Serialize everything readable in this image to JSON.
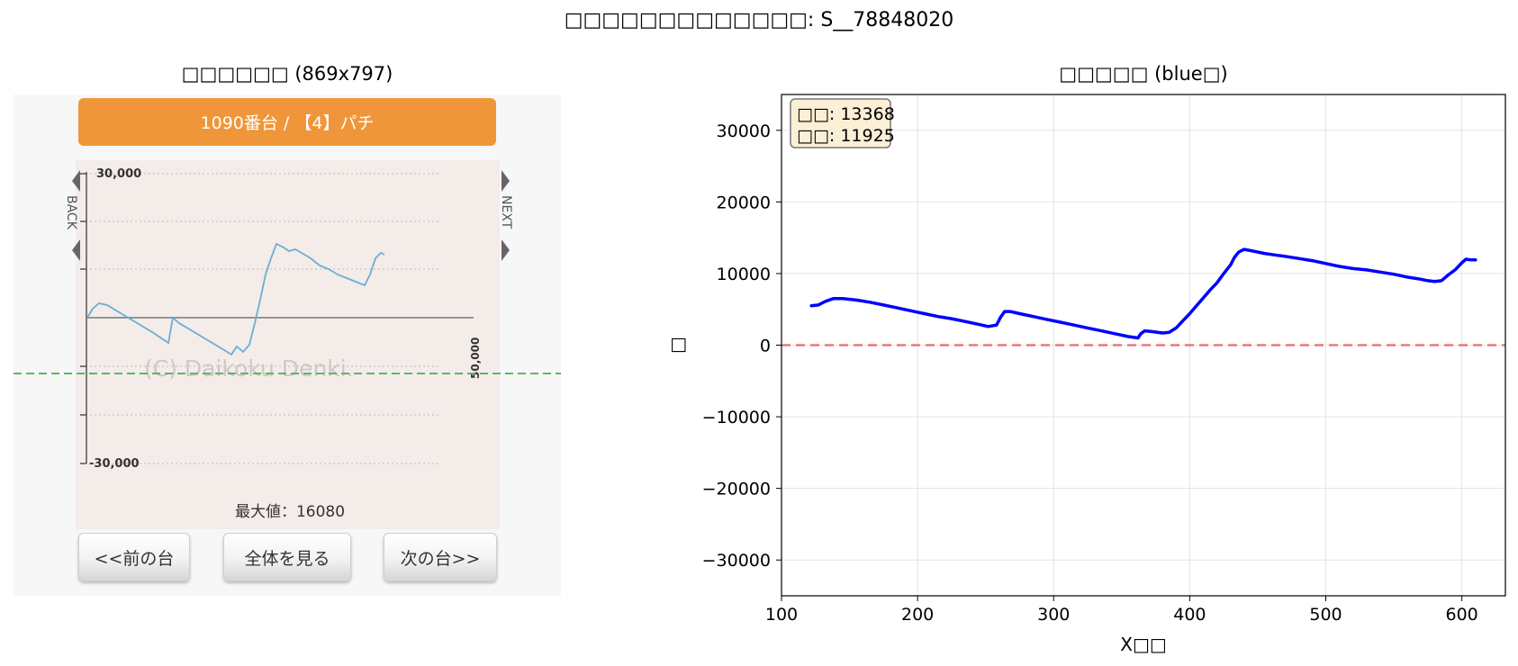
{
  "suptitle": "□□□□□□□□□□□□□: S__78848020",
  "left": {
    "title": "□□□□□□ (869x797)",
    "machine_label": "1090番台 / 【4】パチ",
    "back_label": "BACK",
    "next_side_label": "NEXT",
    "y_top_label": "30,000",
    "y_bottom_label": "-30,000",
    "y_right_label": "50,000",
    "watermark": "(C) Daikoku Denki.",
    "max_label": "最大値：16080",
    "buttons": {
      "prev": "<<前の台",
      "all": "全体を見る",
      "next": "次の台>>"
    },
    "colors": {
      "header": "#f0963a",
      "graph_bg": "#f3ece8",
      "line": "#6aaed6",
      "green_dashed": "#5cb85c"
    }
  },
  "right": {
    "title": "□□□□□ (blue□)",
    "info_lines": [
      "□□: 13368",
      "□□: 11925"
    ]
  },
  "chart_data": {
    "type": "line",
    "xlabel": "X□□",
    "ylabel": "□",
    "xlim": [
      100,
      632
    ],
    "ylim": [
      -35000,
      35000
    ],
    "xticks": [
      100,
      200,
      300,
      400,
      500,
      600
    ],
    "yticks": [
      -30000,
      -20000,
      -10000,
      0,
      10000,
      20000,
      30000
    ],
    "grid": true,
    "baseline": {
      "y": 0,
      "color": "#e87a7a",
      "style": "dashed"
    },
    "series": [
      {
        "color": "#0000ff",
        "x": [
          122,
          127,
          132,
          138,
          145,
          155,
          165,
          175,
          185,
          195,
          205,
          215,
          225,
          235,
          245,
          252,
          258,
          261,
          264,
          268,
          275,
          285,
          295,
          305,
          315,
          325,
          335,
          345,
          355,
          362,
          364,
          367,
          372,
          380,
          385,
          390,
          395,
          400,
          405,
          410,
          415,
          420,
          425,
          430,
          433,
          436,
          440,
          445,
          455,
          462,
          470,
          480,
          490,
          500,
          510,
          520,
          530,
          540,
          550,
          560,
          570,
          575,
          580,
          585,
          590,
          595,
          600,
          603,
          606,
          610
        ],
        "y": [
          5500,
          5600,
          6100,
          6500,
          6500,
          6300,
          6000,
          5600,
          5200,
          4800,
          4400,
          4000,
          3700,
          3300,
          2900,
          2600,
          2800,
          3900,
          4700,
          4700,
          4400,
          4000,
          3600,
          3200,
          2800,
          2400,
          2000,
          1600,
          1200,
          1000,
          1600,
          2000,
          1900,
          1700,
          1800,
          2400,
          3400,
          4400,
          5500,
          6600,
          7700,
          8700,
          10000,
          11200,
          12300,
          13000,
          13368,
          13200,
          12800,
          12600,
          12400,
          12100,
          11800,
          11400,
          11000,
          10700,
          10500,
          10200,
          9900,
          9500,
          9200,
          9000,
          8900,
          9000,
          9800,
          10500,
          11500,
          12000,
          11925,
          11900
        ]
      }
    ]
  }
}
